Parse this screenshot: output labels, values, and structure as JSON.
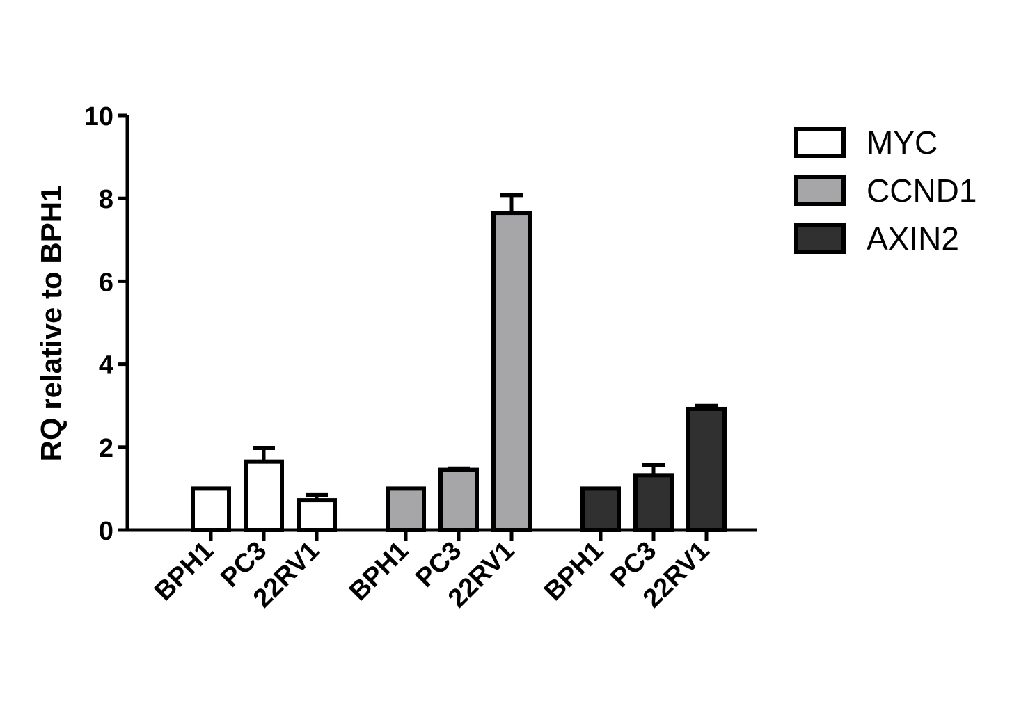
{
  "chart_data": {
    "type": "bar",
    "ylabel": "RQ relative to BPH1",
    "xlabel": "",
    "ylim": [
      0,
      10
    ],
    "yticks": [
      0,
      2,
      4,
      6,
      8,
      10
    ],
    "legend_position": "right",
    "grid": false,
    "groups": [
      {
        "name": "MYC",
        "color": "#ffffff",
        "categories": [
          "BPH1",
          "PC3",
          "22RV1"
        ],
        "values": [
          1.0,
          1.65,
          0.72
        ],
        "errors": [
          0.0,
          0.33,
          0.12
        ]
      },
      {
        "name": "CCND1",
        "color": "#a6a6a9",
        "categories": [
          "BPH1",
          "PC3",
          "22RV1"
        ],
        "values": [
          1.0,
          1.45,
          7.65
        ],
        "errors": [
          0.0,
          0.03,
          0.43
        ]
      },
      {
        "name": "AXIN2",
        "color": "#303030",
        "categories": [
          "BPH1",
          "PC3",
          "22RV1"
        ],
        "values": [
          1.0,
          1.32,
          2.92
        ],
        "errors": [
          0.0,
          0.25,
          0.07
        ]
      }
    ]
  }
}
